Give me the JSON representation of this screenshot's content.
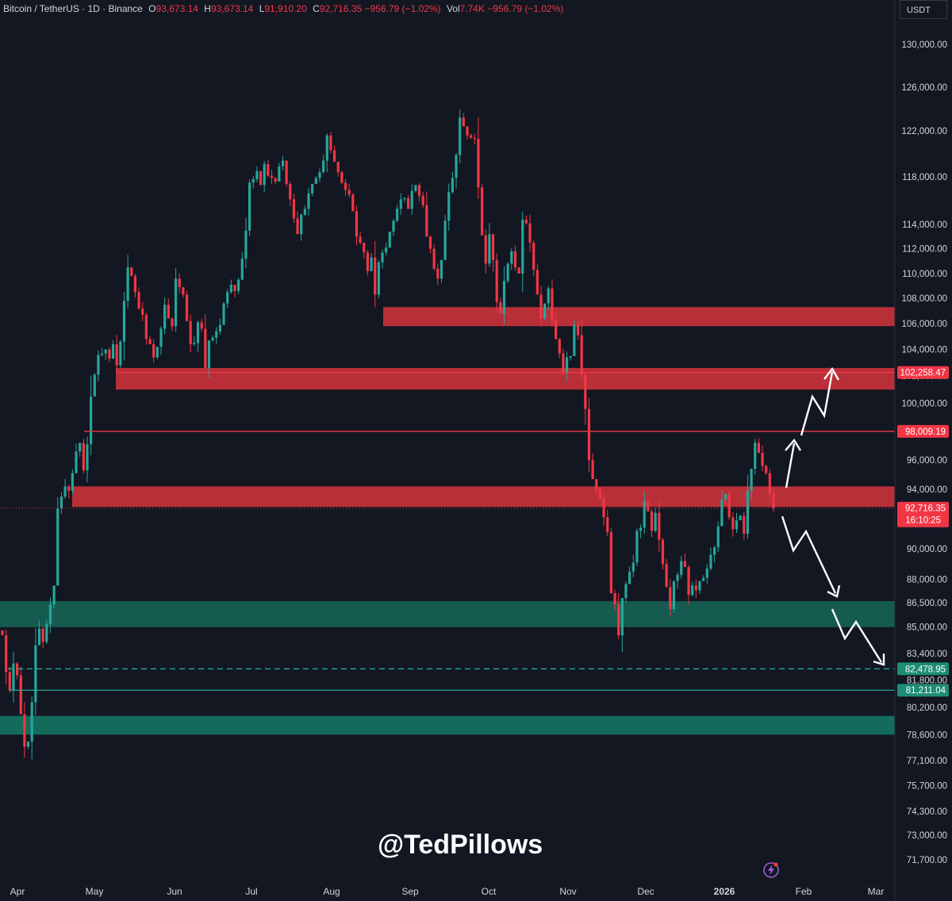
{
  "legend": {
    "symbol": "Bitcoin / TetherUS · 1D · Binance",
    "open_label": "O",
    "open": "93,673.14",
    "high_label": "H",
    "high": "93,673.14",
    "low_label": "L",
    "low": "91,910.20",
    "close_label": "C",
    "close": "92,716.35",
    "change": "−956.79 (−1.02%)",
    "vol_label": "Vol",
    "vol": "7.74K",
    "vol_change": "−956.79 (−1.02%)"
  },
  "currency_button": "USDT",
  "watermark": "@TedPillows",
  "colors": {
    "background": "#131722",
    "up": "#26a69a",
    "down": "#f23645",
    "red_zone": "#c2303a",
    "green_zone": "#1a6b5c"
  },
  "chart_data": {
    "type": "candlestick",
    "title": "Bitcoin / TetherUS · 1D · Binance",
    "y_axis_scale": "log",
    "ylim": [
      71000,
      133000
    ],
    "y_ticks": [
      "130,000.00",
      "126,000.00",
      "122,000.00",
      "118,000.00",
      "114,000.00",
      "112,000.00",
      "110,000.00",
      "108,000.00",
      "106,000.00",
      "104,000.00",
      "102,000.00",
      "100,000.00",
      "96,000.00",
      "94,000.00",
      "90,000.00",
      "88,000.00",
      "86,500.00",
      "85,000.00",
      "83,400.00",
      "81,800.00",
      "80,200.00",
      "78,600.00",
      "77,100.00",
      "75,700.00",
      "74,300.00",
      "73,000.00",
      "71,700.00"
    ],
    "x_ticks": [
      "Apr",
      "May",
      "Jun",
      "Jul",
      "Aug",
      "Sep",
      "Oct",
      "Nov",
      "Dec",
      "2026",
      "Feb",
      "Mar"
    ],
    "closes": [
      84500,
      82300,
      81200,
      82800,
      82100,
      79800,
      77900,
      78200,
      80500,
      83900,
      84900,
      84100,
      85200,
      86400,
      87600,
      92700,
      93500,
      94200,
      93900,
      95100,
      96600,
      97200,
      95300,
      97100,
      100500,
      102100,
      103600,
      103700,
      104000,
      103300,
      104400,
      102800,
      104600,
      107800,
      110500,
      109800,
      108500,
      107200,
      106700,
      104800,
      104400,
      103400,
      104200,
      105600,
      107500,
      106400,
      105800,
      109600,
      108900,
      108300,
      106200,
      104400,
      104500,
      106100,
      105600,
      102600,
      104700,
      104900,
      105400,
      105900,
      107600,
      108500,
      109100,
      108600,
      109500,
      111200,
      113500,
      117500,
      117800,
      118500,
      117300,
      119100,
      118100,
      117900,
      117600,
      118900,
      119400,
      117400,
      116100,
      114500,
      113200,
      114800,
      115300,
      116600,
      117400,
      117900,
      118400,
      119400,
      121600,
      120300,
      119300,
      118400,
      117500,
      116900,
      116500,
      115100,
      113000,
      112500,
      111700,
      110200,
      111300,
      108300,
      110900,
      111700,
      112100,
      113400,
      114300,
      115300,
      116100,
      116200,
      115300,
      116800,
      117300,
      116400,
      115600,
      113000,
      112000,
      110400,
      109600,
      111100,
      114300,
      116700,
      117900,
      119900,
      123200,
      122400,
      121600,
      121400,
      121300,
      117100,
      113100,
      110800,
      113200,
      111100,
      107700,
      106800,
      109400,
      110800,
      111800,
      110500,
      110000,
      114400,
      114100,
      112500,
      110300,
      108300,
      106400,
      107600,
      108800,
      106300,
      104800,
      103700,
      102200,
      103400,
      103500,
      105900,
      105100,
      102100,
      99600,
      96000,
      94700,
      94000,
      93400,
      92100,
      91100,
      87100,
      86400,
      84500,
      86800,
      87700,
      88500,
      89100,
      91200,
      91400,
      93200,
      92500,
      91200,
      92400,
      90600,
      89000,
      87500,
      86100,
      87900,
      88300,
      89200,
      88800,
      87000,
      87600,
      87300,
      87900,
      88100,
      88700,
      89600,
      90100,
      91500,
      93300,
      93700,
      92100,
      91300,
      91900,
      92200,
      91000,
      93900,
      95400,
      97200,
      96500,
      95600,
      95100,
      93700,
      92716
    ]
  },
  "levels": [
    {
      "name": "red-zone-106k",
      "low": 105800,
      "high": 107300,
      "x_from": "Aug 23"
    },
    {
      "name": "red-zone-102k",
      "low": 101000,
      "high": 102600,
      "x_from": "May 4"
    },
    {
      "name": "red-zone-94k",
      "low": 92800,
      "high": 94200,
      "x_from": "Apr 26"
    },
    {
      "name": "green-zone-86k",
      "low": 85000,
      "high": 86600,
      "x_from": "Apr 1"
    },
    {
      "name": "green-zone-79k",
      "low": 78600,
      "high": 79700,
      "x_from": "Apr 1"
    }
  ],
  "horizontal_lines": [
    {
      "name": "line-98009",
      "value": 98009.19,
      "label": "98,009.19",
      "style": "solid",
      "color": "#f23645"
    },
    {
      "name": "line-102258",
      "value": 102258.47,
      "label": "102,258.47",
      "style": "solid",
      "color": "#f23645"
    },
    {
      "name": "line-82478",
      "value": 82478.95,
      "label": "82,478.95",
      "style": "dashed",
      "color": "#26a69a"
    },
    {
      "name": "line-81211",
      "value": 81211.04,
      "label": "81,211.04",
      "style": "solid",
      "color": "#26a69a"
    }
  ],
  "current_price": {
    "value": 92716.35,
    "label": "92,716.35",
    "countdown": "16:10:25"
  }
}
